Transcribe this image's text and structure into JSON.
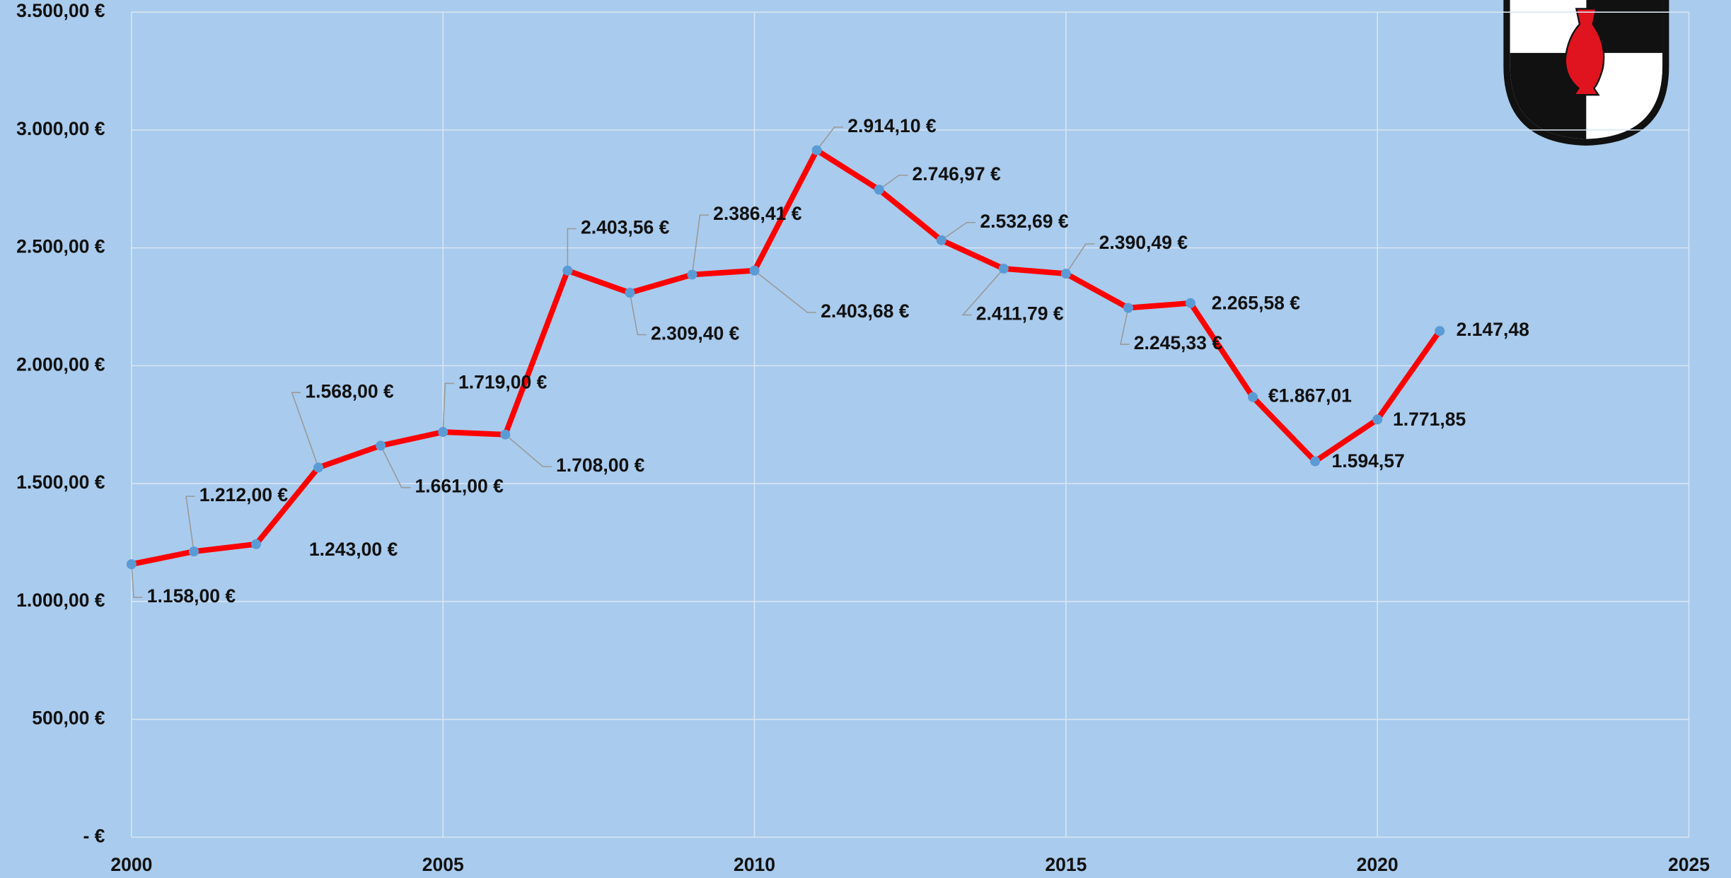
{
  "chart_data": {
    "type": "line",
    "x": [
      2000,
      2001,
      2002,
      2003,
      2004,
      2005,
      2006,
      2007,
      2008,
      2009,
      2010,
      2011,
      2012,
      2013,
      2014,
      2015,
      2016,
      2017,
      2018,
      2019,
      2020,
      2021
    ],
    "series": [
      {
        "color": "#ff0000",
        "marker_color": "#5b9bd5",
        "values": [
          1158.0,
          1212.0,
          1243.0,
          1568.0,
          1661.0,
          1719.0,
          1708.0,
          2403.56,
          2309.4,
          2386.41,
          2403.68,
          2914.1,
          2746.97,
          2532.69,
          2411.79,
          2390.49,
          2245.33,
          2265.58,
          1867.01,
          1594.57,
          1771.85,
          2147.48
        ],
        "value_labels": [
          "1.158,00 €",
          "1.212,00 €",
          "1.243,00 €",
          "1.568,00 €",
          "1.661,00 €",
          "1.719,00 €",
          "1.708,00 €",
          "2.403,56 €",
          "2.309,40 €",
          "2.386,41 €",
          "2.403,68 €",
          "2.914,10 €",
          "2.746,97 €",
          "2.532,69 €",
          "2.411,79 €",
          "2.390,49 €",
          "2.245,33 €",
          "2.265,58 €",
          "€1.867,01",
          "1.594,57",
          "1.771,85",
          "2.147,48"
        ]
      }
    ],
    "xlim": [
      2000,
      2025
    ],
    "xticks": [
      2000,
      2005,
      2010,
      2015,
      2020,
      2025
    ],
    "ylim": [
      0,
      3500
    ],
    "yticks": [
      {
        "value": 0,
        "label": "-  €"
      },
      {
        "value": 500,
        "label": "500,00 €"
      },
      {
        "value": 1000,
        "label": "1.000,00 €"
      },
      {
        "value": 1500,
        "label": "1.500,00 €"
      },
      {
        "value": 2000,
        "label": "2.000,00 €"
      },
      {
        "value": 2500,
        "label": "2.500,00 €"
      },
      {
        "value": 3000,
        "label": "3.000,00 €"
      },
      {
        "value": 3500,
        "label": "3.500,00 €"
      }
    ],
    "grid": true
  }
}
